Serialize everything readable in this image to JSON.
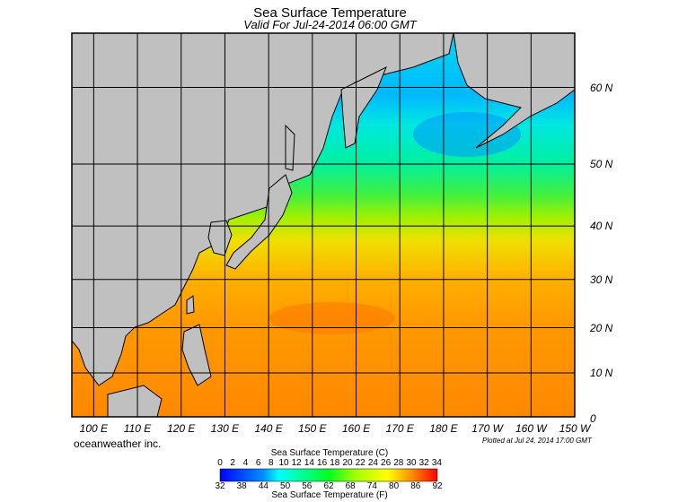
{
  "title": "Sea Surface Temperature",
  "subtitle": "Valid For Jul-24-2014 06:00 GMT",
  "lon_labels": [
    "100 E",
    "110 E",
    "120 E",
    "130 E",
    "140 E",
    "150 E",
    "160 E",
    "170 E",
    "180 E",
    "170 W",
    "160 W",
    "150 W"
  ],
  "lat_labels": [
    "0",
    "10 N",
    "20 N",
    "30 N",
    "40 N",
    "50 N",
    "60 N"
  ],
  "brand": "oceanweather inc.",
  "plotted": "Plotted at Jul 24, 2014 17:00 GMT",
  "colorbar": {
    "title_c": "Sea Surface Temperature (C)",
    "title_f": "Sea Surface Temperature (F)",
    "ticks_c": [
      "0",
      "2",
      "4",
      "6",
      "8",
      "10",
      "12",
      "14",
      "16",
      "18",
      "20",
      "22",
      "24",
      "26",
      "28",
      "30",
      "32",
      "34"
    ],
    "ticks_f": [
      "32",
      "38",
      "44",
      "50",
      "56",
      "62",
      "68",
      "74",
      "80",
      "86",
      "92"
    ],
    "colors": [
      "#0000ff",
      "#0080ff",
      "#00ffff",
      "#00ff80",
      "#00ff00",
      "#c0ff00",
      "#ffff00",
      "#ffa000",
      "#ff0000"
    ]
  },
  "colors": {
    "land": "#c0c0c0",
    "grid": "#000000"
  }
}
